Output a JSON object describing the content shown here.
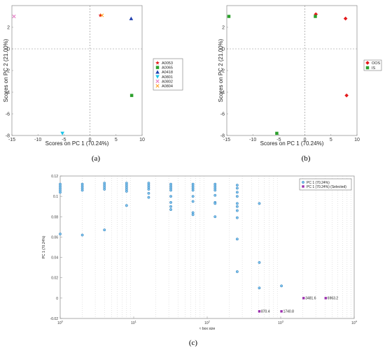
{
  "captions": [
    "(a)",
    "(b)",
    "(c)"
  ],
  "colors": {
    "frame": "#888888",
    "zero_line": "#888888",
    "grid_minor": "#bbbbbb"
  },
  "chart_data": [
    {
      "type": "scatter",
      "xlabel": "Scores on PC 1 (70.24%)",
      "ylabel": "Scores on PC 2 (21.00%)",
      "xlim": [
        -15,
        10
      ],
      "ylim": [
        -8,
        4
      ],
      "xticks": [
        -15,
        -10,
        -5,
        0,
        5,
        10
      ],
      "yticks": [
        -8,
        -6,
        -4,
        -2,
        0,
        2
      ],
      "legend_position": "right",
      "series": [
        {
          "name": "A0053",
          "color": "#e41a1c",
          "marker": "star",
          "points": [
            [
              2.0,
              3.1
            ]
          ]
        },
        {
          "name": "A0065",
          "color": "#2ca02c",
          "marker": "square",
          "points": [
            [
              8.0,
              -4.3
            ]
          ]
        },
        {
          "name": "A0418",
          "color": "#1f3fae",
          "marker": "triangle",
          "points": [
            [
              7.9,
              2.8
            ]
          ]
        },
        {
          "name": "A0801",
          "color": "#17c3e8",
          "marker": "triangle-down",
          "points": [
            [
              -5.3,
              -7.8
            ]
          ]
        },
        {
          "name": "A0802",
          "color": "#e377c2",
          "marker": "x",
          "points": [
            [
              -14.6,
              3.0
            ]
          ]
        },
        {
          "name": "A0804",
          "color": "#ff9f1c",
          "marker": "x",
          "points": [
            [
              2.3,
              3.1
            ]
          ]
        }
      ]
    },
    {
      "type": "scatter",
      "xlabel": "Scores on PC 1 (70.24%)",
      "ylabel": "Scores on PC 2 (21.00%)",
      "xlim": [
        -15,
        10
      ],
      "ylim": [
        -8,
        4
      ],
      "xticks": [
        -15,
        -10,
        -5,
        0,
        5,
        10
      ],
      "yticks": [
        -8,
        -6,
        -4,
        -2,
        0,
        2
      ],
      "legend_position": "right",
      "series": [
        {
          "name": "OOS",
          "color": "#e41a1c",
          "marker": "diamond",
          "points": [
            [
              2.1,
              3.2
            ],
            [
              7.8,
              2.8
            ],
            [
              8.0,
              -4.3
            ]
          ]
        },
        {
          "name": "IS",
          "color": "#2ca02c",
          "marker": "square",
          "points": [
            [
              -14.6,
              3.0
            ],
            [
              2.0,
              3.0
            ],
            [
              -5.4,
              -7.8
            ]
          ]
        }
      ]
    },
    {
      "type": "scatter",
      "xlabel": "≈ box size",
      "ylabel": "PC 1 (70.24%)",
      "xscale": "log",
      "xlim": [
        1,
        10000
      ],
      "ylim": [
        -0.02,
        0.12
      ],
      "xtick_labels": [
        "10^0",
        "10^1",
        "10^2",
        "10^3",
        "10^4"
      ],
      "yticks": [
        -0.02,
        0,
        0.02,
        0.04,
        0.06,
        0.08,
        0.1,
        0.12
      ],
      "legend_position": "top-right",
      "series": [
        {
          "name": "PC 1 (70.24%)",
          "color": "#4a9fd8",
          "points": [
            [
              1.0,
              0.112
            ],
            [
              1.0,
              0.11
            ],
            [
              1.0,
              0.108
            ],
            [
              1.0,
              0.106
            ],
            [
              1.0,
              0.104
            ],
            [
              1.0,
              0.063
            ],
            [
              2.0,
              0.112
            ],
            [
              2.0,
              0.11
            ],
            [
              2.0,
              0.108
            ],
            [
              2.0,
              0.106
            ],
            [
              2.0,
              0.062
            ],
            [
              4.0,
              0.113
            ],
            [
              4.0,
              0.111
            ],
            [
              4.0,
              0.109
            ],
            [
              4.0,
              0.107
            ],
            [
              4.0,
              0.067
            ],
            [
              8.0,
              0.113
            ],
            [
              8.0,
              0.111
            ],
            [
              8.0,
              0.109
            ],
            [
              8.0,
              0.107
            ],
            [
              8.0,
              0.105
            ],
            [
              8.0,
              0.091
            ],
            [
              16.0,
              0.113
            ],
            [
              16.0,
              0.111
            ],
            [
              16.0,
              0.109
            ],
            [
              16.0,
              0.107
            ],
            [
              16.0,
              0.103
            ],
            [
              16.0,
              0.099
            ],
            [
              32.0,
              0.112
            ],
            [
              32.0,
              0.11
            ],
            [
              32.0,
              0.108
            ],
            [
              32.0,
              0.106
            ],
            [
              32.0,
              0.1
            ],
            [
              32.0,
              0.094
            ],
            [
              32.0,
              0.09
            ],
            [
              32.0,
              0.087
            ],
            [
              64.0,
              0.112
            ],
            [
              64.0,
              0.11
            ],
            [
              64.0,
              0.108
            ],
            [
              64.0,
              0.106
            ],
            [
              64.0,
              0.1
            ],
            [
              64.0,
              0.095
            ],
            [
              64.0,
              0.084
            ],
            [
              64.0,
              0.082
            ],
            [
              128.0,
              0.112
            ],
            [
              128.0,
              0.11
            ],
            [
              128.0,
              0.108
            ],
            [
              128.0,
              0.106
            ],
            [
              128.0,
              0.101
            ],
            [
              128.0,
              0.094
            ],
            [
              128.0,
              0.093
            ],
            [
              128.0,
              0.08
            ],
            [
              256.0,
              0.111
            ],
            [
              256.0,
              0.108
            ],
            [
              256.0,
              0.104
            ],
            [
              256.0,
              0.1
            ],
            [
              256.0,
              0.093
            ],
            [
              256.0,
              0.09
            ],
            [
              256.0,
              0.086
            ],
            [
              256.0,
              0.079
            ],
            [
              256.0,
              0.058
            ],
            [
              256.0,
              0.026
            ],
            [
              512.0,
              0.093
            ],
            [
              512.0,
              0.035
            ],
            [
              512.0,
              0.01
            ],
            [
              1024.0,
              0.012
            ]
          ]
        },
        {
          "name": "PC 1 (70.24%) (Selected)",
          "color": "#9b2fae",
          "points": [
            [
              512.0,
              -0.013,
              "870.4"
            ],
            [
              1024.0,
              -0.013,
              "1740.8"
            ],
            [
              2048.0,
              0.0,
              "3481.6"
            ],
            [
              4096.0,
              0.0,
              "6963.2"
            ]
          ]
        }
      ]
    }
  ]
}
